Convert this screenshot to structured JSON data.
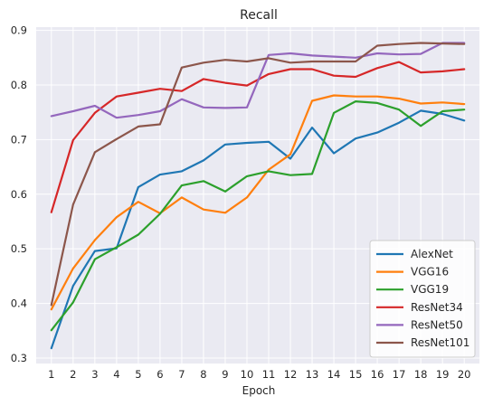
{
  "chart_data": {
    "type": "line",
    "title": "Recall",
    "xlabel": "Epoch",
    "ylabel": "",
    "x": [
      1,
      2,
      3,
      4,
      5,
      6,
      7,
      8,
      9,
      10,
      11,
      12,
      13,
      14,
      15,
      16,
      17,
      18,
      19,
      20
    ],
    "xlim": [
      0.3,
      20.7
    ],
    "ylim": [
      0.29,
      0.906
    ],
    "yticks": [
      0.3,
      0.4,
      0.5,
      0.6,
      0.7,
      0.8,
      0.9
    ],
    "ytick_labels": [
      "0.3",
      "0.4",
      "0.5",
      "0.6",
      "0.7",
      "0.8",
      "0.9"
    ],
    "grid": true,
    "legend_position": "lower-right",
    "background_color": "#eaeaf2",
    "series": [
      {
        "name": "AlexNet",
        "color": "#1f77b4",
        "values": [
          0.318,
          0.432,
          0.496,
          0.501,
          0.613,
          0.636,
          0.642,
          0.662,
          0.691,
          0.694,
          0.696,
          0.665,
          0.722,
          0.675,
          0.702,
          0.713,
          0.731,
          0.753,
          0.747,
          0.735
        ]
      },
      {
        "name": "VGG16",
        "color": "#ff7f0e",
        "values": [
          0.389,
          0.464,
          0.516,
          0.558,
          0.586,
          0.565,
          0.594,
          0.572,
          0.566,
          0.594,
          0.645,
          0.673,
          0.771,
          0.781,
          0.779,
          0.779,
          0.775,
          0.766,
          0.768,
          0.765
        ]
      },
      {
        "name": "VGG19",
        "color": "#2ca02c",
        "values": [
          0.351,
          0.402,
          0.481,
          0.503,
          0.526,
          0.564,
          0.616,
          0.624,
          0.605,
          0.633,
          0.642,
          0.635,
          0.637,
          0.749,
          0.77,
          0.767,
          0.755,
          0.725,
          0.752,
          0.755
        ]
      },
      {
        "name": "ResNet34",
        "color": "#d62728",
        "values": [
          0.567,
          0.699,
          0.749,
          0.779,
          0.786,
          0.793,
          0.789,
          0.811,
          0.804,
          0.799,
          0.82,
          0.829,
          0.829,
          0.817,
          0.815,
          0.831,
          0.842,
          0.823,
          0.825,
          0.829
        ]
      },
      {
        "name": "ResNet50",
        "color": "#9467bd",
        "values": [
          0.743,
          0.752,
          0.762,
          0.74,
          0.745,
          0.752,
          0.774,
          0.759,
          0.758,
          0.759,
          0.855,
          0.858,
          0.854,
          0.852,
          0.85,
          0.858,
          0.856,
          0.857,
          0.877,
          0.877
        ]
      },
      {
        "name": "ResNet101",
        "color": "#8c564b",
        "values": [
          0.397,
          0.581,
          0.677,
          0.701,
          0.724,
          0.728,
          0.832,
          0.841,
          0.846,
          0.843,
          0.849,
          0.841,
          0.843,
          0.843,
          0.843,
          0.872,
          0.875,
          0.877,
          0.876,
          0.875
        ]
      }
    ]
  }
}
